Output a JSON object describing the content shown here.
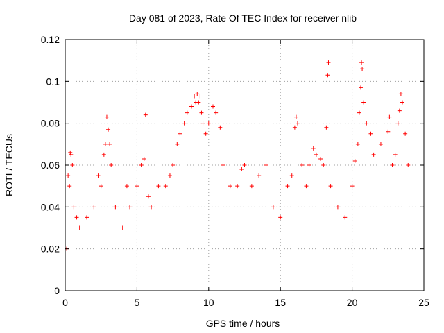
{
  "chart_data": {
    "type": "scatter",
    "title": "Day 081 of 2023, Rate Of TEC Index for receiver nlib",
    "xlabel": "GPS time / hours",
    "ylabel": "ROTI / TECUs",
    "xlim": [
      0,
      25
    ],
    "ylim": [
      0,
      0.12
    ],
    "xticks": [
      0,
      5,
      10,
      15,
      20,
      25
    ],
    "xtick_labels": [
      "0",
      "5",
      "10",
      "15",
      "20",
      "25"
    ],
    "yticks": [
      0,
      0.02,
      0.04,
      0.06,
      0.08,
      0.1,
      0.12
    ],
    "ytick_labels": [
      "0",
      "0.02",
      "0.04",
      "0.06",
      "0.08",
      "0.1",
      "0.12"
    ],
    "grid": true,
    "marker": "plus",
    "color": "#ff0000",
    "series": [
      {
        "name": "ROTI",
        "points": [
          [
            0.1,
            0.02
          ],
          [
            0.2,
            0.055
          ],
          [
            0.3,
            0.05
          ],
          [
            0.35,
            0.066
          ],
          [
            0.4,
            0.065
          ],
          [
            0.5,
            0.06
          ],
          [
            0.6,
            0.04
          ],
          [
            0.8,
            0.035
          ],
          [
            1.0,
            0.03
          ],
          [
            1.5,
            0.035
          ],
          [
            2.0,
            0.04
          ],
          [
            2.3,
            0.055
          ],
          [
            2.5,
            0.05
          ],
          [
            2.7,
            0.065
          ],
          [
            2.8,
            0.07
          ],
          [
            2.9,
            0.083
          ],
          [
            3.0,
            0.077
          ],
          [
            3.1,
            0.07
          ],
          [
            3.2,
            0.06
          ],
          [
            3.5,
            0.04
          ],
          [
            4.0,
            0.03
          ],
          [
            4.3,
            0.05
          ],
          [
            4.5,
            0.04
          ],
          [
            5.0,
            0.05
          ],
          [
            5.3,
            0.06
          ],
          [
            5.5,
            0.063
          ],
          [
            5.6,
            0.084
          ],
          [
            5.8,
            0.045
          ],
          [
            6.0,
            0.04
          ],
          [
            6.5,
            0.05
          ],
          [
            7.0,
            0.05
          ],
          [
            7.3,
            0.055
          ],
          [
            7.5,
            0.06
          ],
          [
            7.8,
            0.07
          ],
          [
            8.0,
            0.075
          ],
          [
            8.3,
            0.08
          ],
          [
            8.5,
            0.085
          ],
          [
            8.8,
            0.088
          ],
          [
            9.0,
            0.093
          ],
          [
            9.1,
            0.09
          ],
          [
            9.2,
            0.094
          ],
          [
            9.3,
            0.09
          ],
          [
            9.4,
            0.093
          ],
          [
            9.5,
            0.085
          ],
          [
            9.6,
            0.08
          ],
          [
            9.8,
            0.075
          ],
          [
            10.0,
            0.08
          ],
          [
            10.3,
            0.088
          ],
          [
            10.5,
            0.085
          ],
          [
            10.8,
            0.078
          ],
          [
            11.0,
            0.06
          ],
          [
            11.5,
            0.05
          ],
          [
            12.0,
            0.05
          ],
          [
            12.3,
            0.058
          ],
          [
            12.5,
            0.06
          ],
          [
            13.0,
            0.05
          ],
          [
            13.5,
            0.055
          ],
          [
            14.0,
            0.06
          ],
          [
            14.5,
            0.04
          ],
          [
            15.0,
            0.035
          ],
          [
            15.5,
            0.05
          ],
          [
            15.8,
            0.055
          ],
          [
            16.0,
            0.078
          ],
          [
            16.1,
            0.083
          ],
          [
            16.2,
            0.08
          ],
          [
            16.5,
            0.06
          ],
          [
            16.8,
            0.05
          ],
          [
            17.0,
            0.06
          ],
          [
            17.3,
            0.068
          ],
          [
            17.5,
            0.065
          ],
          [
            17.8,
            0.063
          ],
          [
            18.0,
            0.06
          ],
          [
            18.2,
            0.078
          ],
          [
            18.3,
            0.103
          ],
          [
            18.35,
            0.109
          ],
          [
            18.5,
            0.05
          ],
          [
            19.0,
            0.04
          ],
          [
            19.5,
            0.035
          ],
          [
            20.0,
            0.05
          ],
          [
            20.2,
            0.062
          ],
          [
            20.4,
            0.07
          ],
          [
            20.5,
            0.085
          ],
          [
            20.6,
            0.097
          ],
          [
            20.65,
            0.109
          ],
          [
            20.7,
            0.106
          ],
          [
            20.8,
            0.09
          ],
          [
            21.0,
            0.08
          ],
          [
            21.3,
            0.075
          ],
          [
            21.5,
            0.065
          ],
          [
            22.0,
            0.07
          ],
          [
            22.5,
            0.076
          ],
          [
            22.6,
            0.083
          ],
          [
            22.8,
            0.06
          ],
          [
            23.0,
            0.065
          ],
          [
            23.2,
            0.08
          ],
          [
            23.3,
            0.086
          ],
          [
            23.4,
            0.094
          ],
          [
            23.5,
            0.09
          ],
          [
            23.7,
            0.075
          ],
          [
            23.9,
            0.06
          ]
        ]
      }
    ]
  }
}
